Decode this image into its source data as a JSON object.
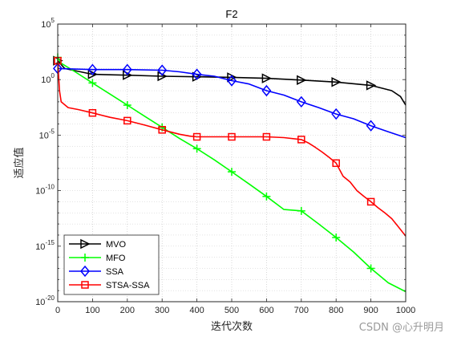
{
  "watermark": "CSDN @心升明月",
  "chart_data": {
    "type": "line",
    "title": "F2",
    "xlabel": "迭代次数",
    "ylabel": "适应值",
    "xlim": [
      0,
      1000
    ],
    "ylim": [
      1e-20,
      100000.0
    ],
    "yscale": "log",
    "x_ticks": [
      0,
      100,
      200,
      300,
      400,
      500,
      600,
      700,
      800,
      900,
      1000
    ],
    "y_ticks": [
      {
        "base": "10",
        "exp": "-20",
        "value": 1e-20
      },
      {
        "base": "10",
        "exp": "-15",
        "value": 1e-15
      },
      {
        "base": "10",
        "exp": "-10",
        "value": 1e-10
      },
      {
        "base": "10",
        "exp": "-5",
        "value": 1e-05
      },
      {
        "base": "10",
        "exp": "0",
        "value": 1
      },
      {
        "base": "10",
        "exp": "5",
        "value": 100000.0
      }
    ],
    "grid": true,
    "legend_position": "bottom-left",
    "series": [
      {
        "name": "MVO",
        "color": "#000000",
        "marker": "triangle-right",
        "x": [
          0,
          20,
          100,
          200,
          300,
          400,
          500,
          600,
          700,
          800,
          900,
          960,
          985,
          1000
        ],
        "y": [
          50,
          10,
          3,
          2.5,
          2,
          1.8,
          1.6,
          1.3,
          0.9,
          0.6,
          0.3,
          0.1,
          0.03,
          0.005
        ],
        "marker_x": [
          0,
          100,
          200,
          300,
          400,
          500,
          600,
          700,
          800,
          900
        ]
      },
      {
        "name": "MFO",
        "color": "#00ff00",
        "marker": "plus",
        "x": [
          0,
          10,
          50,
          100,
          150,
          200,
          250,
          300,
          350,
          400,
          450,
          500,
          550,
          600,
          650,
          700,
          750,
          800,
          850,
          900,
          950,
          1000
        ],
        "y": [
          100,
          30,
          5,
          0.5,
          0.05,
          0.005,
          0.0005,
          5e-05,
          5e-06,
          6e-07,
          6e-08,
          5e-09,
          4e-10,
          3e-11,
          2e-12,
          1.5e-12,
          1e-13,
          6e-15,
          3e-16,
          1e-17,
          5e-19,
          8e-20
        ],
        "marker_x": [
          0,
          100,
          200,
          300,
          400,
          500,
          600,
          700,
          800,
          900
        ]
      },
      {
        "name": "SSA",
        "color": "#0000ff",
        "marker": "diamond",
        "x": [
          0,
          100,
          200,
          300,
          350,
          400,
          450,
          500,
          550,
          600,
          650,
          700,
          750,
          800,
          850,
          900,
          950,
          1000
        ],
        "y": [
          10,
          8,
          8,
          7,
          5,
          3,
          2,
          0.8,
          0.4,
          0.1,
          0.04,
          0.01,
          0.003,
          0.0008,
          0.0003,
          7e-05,
          2e-05,
          6e-06
        ],
        "marker_x": [
          0,
          100,
          200,
          300,
          400,
          500,
          600,
          700,
          800,
          900
        ]
      },
      {
        "name": "STSA-SSA",
        "color": "#ff0000",
        "marker": "square",
        "x": [
          0,
          5,
          10,
          30,
          60,
          100,
          150,
          200,
          250,
          300,
          350,
          380,
          400,
          500,
          600,
          650,
          700,
          720,
          740,
          760,
          780,
          800,
          820,
          840,
          860,
          880,
          900,
          920,
          940,
          960,
          980,
          1000
        ],
        "y": [
          50,
          0.1,
          0.01,
          0.003,
          0.002,
          0.001,
          0.0004,
          0.0002,
          8e-05,
          3e-05,
          1.2e-05,
          8e-06,
          7e-06,
          7e-06,
          7e-06,
          6e-06,
          4e-06,
          2e-06,
          8e-07,
          3e-07,
          1e-07,
          3e-08,
          2e-09,
          6e-10,
          1e-10,
          3e-11,
          1e-11,
          3e-12,
          1e-12,
          3e-13,
          5e-14,
          8e-15
        ],
        "marker_x": [
          0,
          100,
          200,
          300,
          400,
          500,
          600,
          700,
          800,
          900
        ]
      }
    ]
  }
}
